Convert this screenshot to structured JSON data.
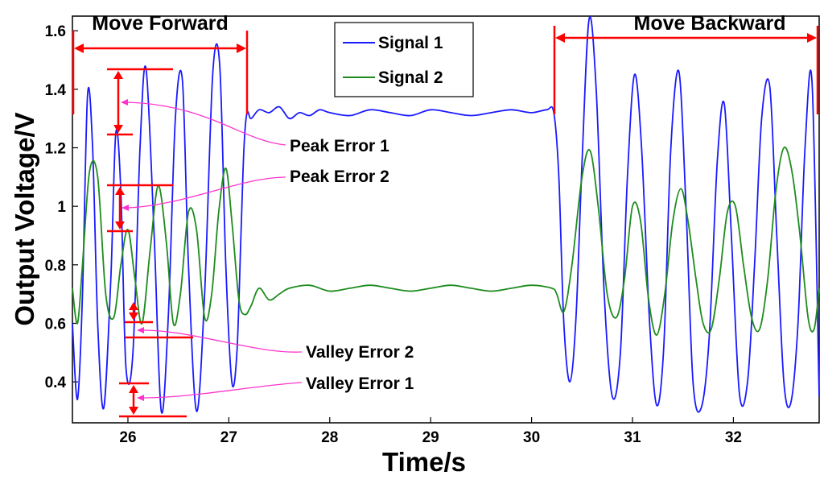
{
  "chart_data": {
    "type": "line",
    "title": "",
    "xlabel": "Time/s",
    "ylabel": "Output Voltage/V",
    "xlim": [
      25.45,
      32.85
    ],
    "ylim": [
      0.26,
      1.65
    ],
    "x_ticks": [
      26,
      27,
      28,
      29,
      30,
      31,
      32
    ],
    "x_tick_labels": [
      "26",
      "27",
      "28",
      "29",
      "30",
      "31",
      "32"
    ],
    "y_ticks": [
      0.4,
      0.6,
      0.8,
      1.0,
      1.2,
      1.4,
      1.6
    ],
    "y_tick_labels": [
      "0.4",
      "0.6",
      "0.8",
      "1",
      "1.2",
      "1.4",
      "1.6"
    ],
    "grid": false,
    "legend_position": "top-center",
    "series": [
      {
        "name": "Signal 1",
        "color": "#1a1aff",
        "x": [
          25.45,
          25.5,
          25.55,
          25.6,
          25.65,
          25.7,
          25.76,
          25.83,
          25.88,
          25.93,
          25.98,
          26.05,
          26.12,
          26.18,
          26.26,
          26.33,
          26.4,
          26.47,
          26.54,
          26.6,
          26.68,
          26.76,
          26.84,
          26.91,
          26.97,
          27.03,
          27.08,
          27.12,
          27.15,
          27.18,
          27.22,
          27.3,
          27.4,
          27.5,
          27.6,
          27.7,
          27.8,
          27.9,
          28.0,
          28.2,
          28.4,
          28.6,
          28.8,
          29.0,
          29.2,
          29.4,
          29.6,
          29.8,
          30.0,
          30.15,
          30.22,
          30.27,
          30.32,
          30.38,
          30.44,
          30.5,
          30.57,
          30.64,
          30.72,
          30.8,
          30.88,
          30.95,
          31.02,
          31.09,
          31.17,
          31.24,
          31.31,
          31.38,
          31.46,
          31.53,
          31.6,
          31.68,
          31.76,
          31.84,
          31.91,
          31.98,
          32.06,
          32.14,
          32.21,
          32.28,
          32.36,
          32.43,
          32.5,
          32.57,
          32.64,
          32.71,
          32.78,
          32.85
        ],
        "y": [
          0.6,
          0.34,
          0.7,
          1.38,
          1.2,
          0.6,
          0.31,
          0.75,
          1.25,
          1.05,
          0.45,
          0.5,
          1.2,
          1.47,
          0.9,
          0.3,
          0.62,
          1.3,
          1.43,
          0.8,
          0.3,
          0.7,
          1.45,
          1.48,
          0.8,
          0.4,
          0.5,
          0.9,
          1.2,
          1.32,
          1.3,
          1.33,
          1.32,
          1.34,
          1.3,
          1.32,
          1.31,
          1.33,
          1.32,
          1.31,
          1.33,
          1.32,
          1.31,
          1.33,
          1.32,
          1.31,
          1.32,
          1.33,
          1.32,
          1.33,
          1.32,
          1.1,
          0.6,
          0.4,
          0.62,
          1.15,
          1.64,
          1.4,
          0.7,
          0.35,
          0.5,
          1.1,
          1.45,
          1.2,
          0.6,
          0.32,
          0.52,
          1.2,
          1.46,
          1.0,
          0.4,
          0.31,
          0.55,
          1.15,
          1.35,
          0.9,
          0.36,
          0.4,
          0.8,
          1.3,
          1.41,
          0.9,
          0.4,
          0.33,
          0.6,
          1.2,
          1.42,
          0.35
        ]
      },
      {
        "name": "Signal 2",
        "color": "#1e8c1e",
        "x": [
          25.45,
          25.5,
          25.55,
          25.62,
          25.7,
          25.78,
          25.86,
          25.93,
          26.0,
          26.07,
          26.14,
          26.22,
          26.3,
          26.38,
          26.45,
          26.52,
          26.6,
          26.68,
          26.76,
          26.83,
          26.9,
          26.97,
          27.03,
          27.1,
          27.16,
          27.22,
          27.3,
          27.4,
          27.5,
          27.6,
          27.8,
          28.0,
          28.2,
          28.4,
          28.6,
          28.8,
          29.0,
          29.2,
          29.4,
          29.6,
          29.8,
          30.0,
          30.2,
          30.25,
          30.32,
          30.4,
          30.5,
          30.58,
          30.66,
          30.75,
          30.84,
          30.92,
          31.0,
          31.08,
          31.16,
          31.24,
          31.32,
          31.4,
          31.48,
          31.55,
          31.63,
          31.7,
          31.78,
          31.86,
          31.94,
          32.02,
          32.1,
          32.18,
          32.26,
          32.34,
          32.42,
          32.5,
          32.58,
          32.66,
          32.74,
          32.8,
          32.85
        ],
        "y": [
          0.72,
          0.6,
          0.8,
          1.12,
          1.1,
          0.7,
          0.62,
          0.8,
          0.92,
          0.75,
          0.6,
          0.85,
          1.07,
          0.88,
          0.6,
          0.7,
          0.98,
          0.92,
          0.62,
          0.7,
          0.98,
          1.13,
          0.95,
          0.68,
          0.63,
          0.66,
          0.72,
          0.68,
          0.7,
          0.72,
          0.73,
          0.71,
          0.72,
          0.73,
          0.72,
          0.71,
          0.72,
          0.73,
          0.72,
          0.71,
          0.72,
          0.73,
          0.72,
          0.7,
          0.64,
          0.8,
          1.1,
          1.19,
          1.0,
          0.7,
          0.62,
          0.75,
          1.0,
          0.95,
          0.68,
          0.56,
          0.7,
          0.95,
          1.06,
          0.95,
          0.75,
          0.6,
          0.58,
          0.75,
          0.98,
          1.0,
          0.8,
          0.62,
          0.58,
          0.75,
          1.05,
          1.2,
          1.12,
          0.9,
          0.62,
          0.58,
          0.72
        ]
      }
    ],
    "annotations": {
      "move_forward": "Move Forward",
      "move_backward": "Move Backward",
      "peak_error_1": "Peak Error 1",
      "peak_error_2": "Peak Error 2",
      "valley_error_2": "Valley Error 2",
      "valley_error_1": "Valley Error 1"
    },
    "annotation_colors": {
      "markers": "#ff0000",
      "leaders": "#ff33cc"
    }
  }
}
